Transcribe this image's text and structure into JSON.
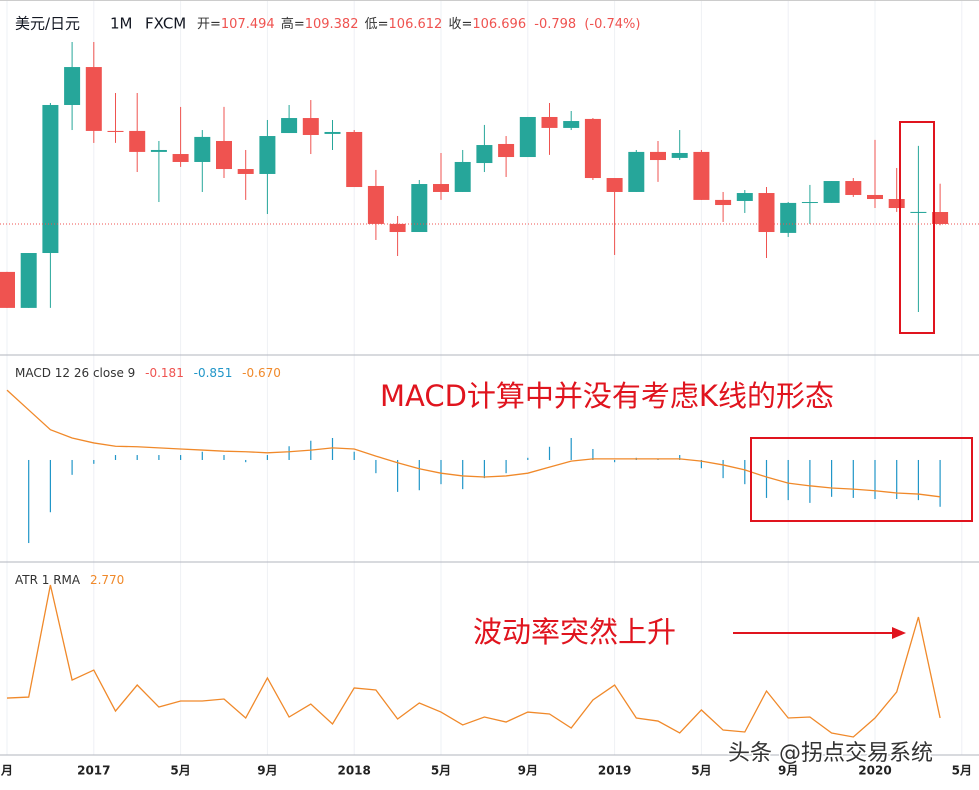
{
  "chart_data": [
    {
      "type": "candlestick",
      "title": "美元/日元",
      "interval": "1M",
      "source": "FXCM",
      "header_labels": [
        "开=",
        "高=",
        "低=",
        "收="
      ],
      "change": -0.798,
      "change_pct": -0.74,
      "change_pct_label": "(-0.74%)",
      "categories": [
        "月",
        null,
        null,
        null,
        "2017",
        null,
        null,
        null,
        "5月",
        null,
        null,
        null,
        "9月",
        null,
        null,
        null,
        "2018",
        null,
        null,
        null,
        "5月",
        null,
        null,
        null,
        "9月",
        null,
        null,
        null,
        "2019",
        null,
        null,
        null,
        "5月",
        null,
        null,
        null,
        "9月",
        null,
        null,
        null,
        "2020",
        null,
        null,
        null,
        "5月"
      ],
      "open": [
        103.5,
        101.1,
        104.76,
        114.63,
        117.16,
        112.9,
        112.9,
        111.5,
        111.36,
        110.83,
        112.23,
        110.36,
        110.03,
        112.76,
        113.76,
        112.7,
        112.83,
        109.23,
        106.7,
        106.16,
        109.36,
        108.83,
        110.76,
        112.03,
        111.16,
        113.83,
        113.1,
        113.7,
        109.76,
        108.83,
        111.5,
        111.1,
        111.5,
        108.3,
        108.23,
        108.76,
        106.1,
        108.1,
        108.1,
        109.56,
        108.63,
        108.36,
        107.43,
        107.494,
        null
      ],
      "high": [
        103.5,
        104.76,
        114.76,
        118.83,
        118.83,
        115.43,
        115.43,
        112.23,
        114.5,
        112.96,
        114.5,
        111.63,
        113.63,
        114.63,
        114.96,
        113.63,
        112.96,
        110.3,
        107.23,
        109.63,
        111.43,
        111.63,
        113.3,
        112.56,
        113.83,
        114.76,
        114.23,
        113.76,
        109.76,
        111.63,
        112.23,
        112.96,
        111.63,
        108.83,
        108.96,
        109.16,
        108.16,
        109.3,
        109.56,
        109.76,
        112.3,
        110.43,
        111.9,
        109.382,
        null
      ],
      "low": [
        101.1,
        101.1,
        101.1,
        112.96,
        112.1,
        112.1,
        110.16,
        108.16,
        110.5,
        108.83,
        109.76,
        108.3,
        107.36,
        112.76,
        111.36,
        111.63,
        109.16,
        105.63,
        104.56,
        106.16,
        108.3,
        108.83,
        110.16,
        109.83,
        111.16,
        111.3,
        112.96,
        109.63,
        104.63,
        108.83,
        109.5,
        110.96,
        108.3,
        106.83,
        107.43,
        104.43,
        105.83,
        106.7,
        108.1,
        108.5,
        107.76,
        107.5,
        100.83,
        106.612,
        null
      ],
      "close": [
        101.1,
        104.76,
        114.63,
        117.16,
        112.9,
        112.83,
        111.5,
        111.63,
        110.83,
        112.5,
        110.36,
        110.03,
        112.56,
        113.76,
        112.63,
        112.83,
        109.16,
        106.7,
        106.16,
        109.36,
        108.83,
        110.83,
        111.96,
        111.16,
        113.83,
        113.1,
        113.56,
        109.76,
        108.83,
        111.5,
        110.96,
        111.43,
        108.3,
        107.96,
        108.76,
        106.16,
        108.1,
        108.16,
        109.56,
        108.63,
        108.36,
        107.76,
        107.5,
        106.696,
        null
      ],
      "up_color": "#26a69a",
      "down_color": "#ef5350",
      "ylim": [
        97.96,
        121.63
      ]
    },
    {
      "type": "macd",
      "title": "MACD 12 26 close 9",
      "histogram": -0.181,
      "signal_last_label": "-0.670",
      "series": [
        {
          "style": "histogram",
          "color": "#2196c8",
          "values": [
            null,
            -1.51,
            -0.95,
            -0.27,
            -0.07,
            0.09,
            0.09,
            0.09,
            0.09,
            0.15,
            0.09,
            -0.04,
            0.09,
            0.25,
            0.35,
            0.4,
            0.15,
            -0.24,
            -0.58,
            -0.55,
            -0.44,
            -0.53,
            -0.33,
            -0.24,
            0.04,
            0.24,
            0.4,
            0.2,
            -0.04,
            0.04,
            0.02,
            0.09,
            -0.15,
            -0.33,
            -0.44,
            -0.69,
            -0.73,
            -0.78,
            -0.67,
            -0.69,
            -0.71,
            -0.71,
            -0.73,
            -0.851,
            null
          ]
        },
        {
          "style": "line",
          "color": "#f0892a",
          "values": [
            1.27,
            0.91,
            0.55,
            0.4,
            0.31,
            0.25,
            0.24,
            0.22,
            0.2,
            0.18,
            0.16,
            0.15,
            0.13,
            0.15,
            0.18,
            0.22,
            0.2,
            0.07,
            -0.05,
            -0.16,
            -0.24,
            -0.29,
            -0.31,
            -0.29,
            -0.24,
            -0.13,
            -0.02,
            0.02,
            0.02,
            0.02,
            0.02,
            0.02,
            -0.02,
            -0.09,
            -0.18,
            -0.31,
            -0.42,
            -0.47,
            -0.51,
            -0.53,
            -0.56,
            -0.6,
            -0.62,
            -0.67,
            null
          ]
        }
      ],
      "ylim": [
        -1.855,
        1.909
      ]
    },
    {
      "type": "line",
      "title": "ATR 1 RMA",
      "color": "#f0892a",
      "last_label": "2.770",
      "values": [
        4.41,
        4.49,
        13.7,
        5.89,
        6.71,
        3.34,
        5.48,
        3.67,
        4.17,
        4.17,
        4.33,
        2.77,
        6.06,
        2.85,
        3.92,
        2.28,
        5.24,
        5.07,
        2.69,
        4.0,
        3.26,
        2.2,
        2.85,
        2.44,
        3.26,
        3.1,
        1.95,
        4.25,
        5.48,
        2.77,
        2.52,
        1.54,
        3.43,
        1.78,
        1.62,
        4.99,
        2.77,
        2.85,
        1.54,
        1.21,
        2.77,
        4.91,
        11.07,
        2.77,
        null
      ],
      "ylim": [
        -0.27,
        15.59
      ]
    }
  ],
  "annotations": {
    "macd_note": "MACD计算中并没有考虑K线的形态",
    "atr_note": "波动率突然上升",
    "watermark": "头条 @拐点交易系统"
  }
}
